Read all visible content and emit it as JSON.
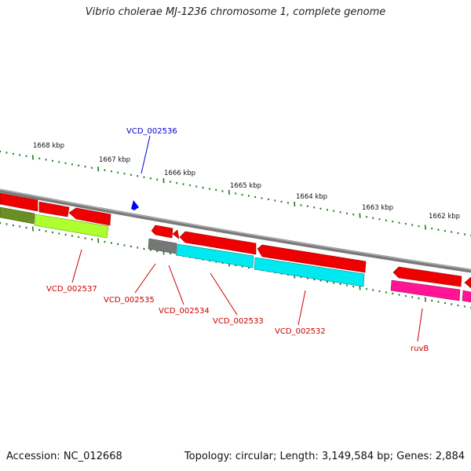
{
  "title": "Vibrio cholerae MJ-1236 chromosome 1, complete genome",
  "footer": {
    "accession": "Accession: NC_012668",
    "stats": "Topology: circular; Length: 3,149,584 bp; Genes: 2,884"
  },
  "scale_labels": [
    "1668 kbp",
    "1667 kbp",
    "1666 kbp",
    "1665 kbp",
    "1664 kbp",
    "1663 kbp",
    "1662 kbp"
  ],
  "gene_labels": {
    "vcd_002536": "VCD_002536",
    "vcd_002537": "VCD_002537",
    "vcd_002535": "VCD_002535",
    "vcd_002534": "VCD_002534",
    "vcd_002533": "VCD_002533",
    "vcd_002532": "VCD_002532",
    "ruvb": "ruvB"
  },
  "colors": {
    "backbone": "#808080",
    "cds": "#ff0000",
    "tick": "#1a7a1a",
    "label_red": "#cc0000",
    "label_blue": "#0000cc",
    "marker": "#0000ff",
    "cog_olive": "#6b8e23",
    "cog_lime": "#adff2f",
    "cog_gray": "#808080",
    "cog_cyan": "#00ffff",
    "cog_magenta": "#ff1493"
  }
}
